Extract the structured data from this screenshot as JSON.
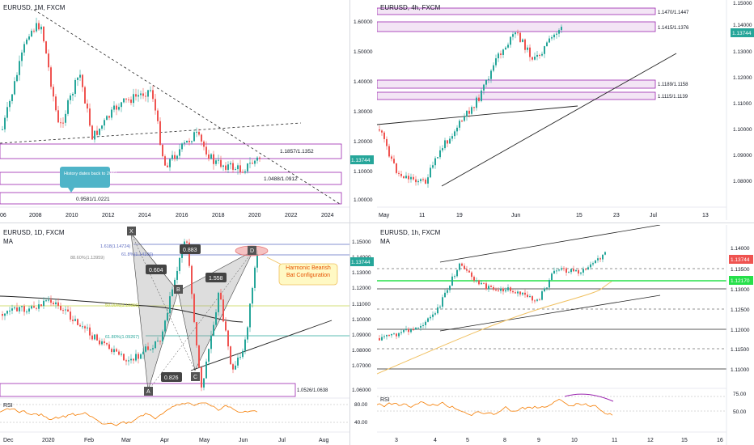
{
  "panels": {
    "tl": {
      "title": "EURUSD, 1M, FXCM",
      "price_tag": "1.13744",
      "y_ticks": [
        "1.60000",
        "1.50000",
        "1.40000",
        "1.30000",
        "1.20000",
        "1.10000",
        "1.00000"
      ],
      "x_ticks": [
        "06",
        "2008",
        "2010",
        "2012",
        "2014",
        "2016",
        "2018",
        "2020",
        "2022",
        "2024"
      ],
      "zone_labels": [
        "1.1857/1.1352",
        "1.0488/1.0912",
        "0.9581/1.0221"
      ],
      "note": "History dates back to 2003"
    },
    "tr": {
      "title": "EURUSD, 4h, FXCM",
      "price_tag": "1.13744",
      "y_ticks": [
        "1.15000",
        "1.14000",
        "1.13000",
        "1.12000",
        "1.11000",
        "1.10000",
        "1.09000",
        "1.08000"
      ],
      "x_ticks": [
        "May",
        "11",
        "19",
        "Jun",
        "15",
        "23",
        "Jul",
        "13"
      ],
      "zone_labels": [
        "1.1470/1.1447",
        "1.1415/1.1376",
        "1.1189/1.1158",
        "1.1115/1.1139"
      ]
    },
    "bl": {
      "title": "EURUSD, 1D, FXCM",
      "ma": "MA",
      "price_tag": "1.13744",
      "y_ticks": [
        "1.15000",
        "1.14000",
        "1.13000",
        "1.12000",
        "1.11000",
        "1.10000",
        "1.09000",
        "1.08000",
        "1.07000",
        "1.06000"
      ],
      "x_ticks": [
        "Dec",
        "2020",
        "Feb",
        "Mar",
        "Apr",
        "May",
        "Jun",
        "Jul",
        "Aug"
      ],
      "points": [
        "X",
        "A",
        "B",
        "C",
        "D"
      ],
      "ratios": [
        "0.883",
        "0.604",
        "1.558",
        "0.826"
      ],
      "fib_labels": [
        "1.618(1.14724)",
        "88.60%(1.13959)",
        "61.8%(1.14100)",
        "50.00%(1.10956)",
        "61.80%(1.09267)"
      ],
      "zone_label": "1.0526/1.0638",
      "annotation": "Harmonic Bearish Bat Configuration",
      "rsi": "RSI",
      "rsi_ticks": [
        "80.00",
        "40.00"
      ]
    },
    "br": {
      "title": "EURUSD, 1h, FXCM",
      "ma": "MA",
      "price_tag": "1.13744",
      "green_tag": "1.12170",
      "y_ticks": [
        "1.14000",
        "1.13500",
        "1.13000",
        "1.12500",
        "1.12000",
        "1.11500",
        "1.11000"
      ],
      "x_ticks": [
        "3",
        "4",
        "5",
        "8",
        "9",
        "10",
        "11",
        "12",
        "15",
        "16"
      ],
      "rsi": "RSI",
      "rsi_ticks": [
        "75.00",
        "50.00"
      ]
    }
  },
  "colors": {
    "up": "#26a69a",
    "down": "#ef5350",
    "zone": "#9c27b0",
    "tag": "#26a69a",
    "ma_orange": "#f0c060",
    "rsi": "#f57c00"
  }
}
